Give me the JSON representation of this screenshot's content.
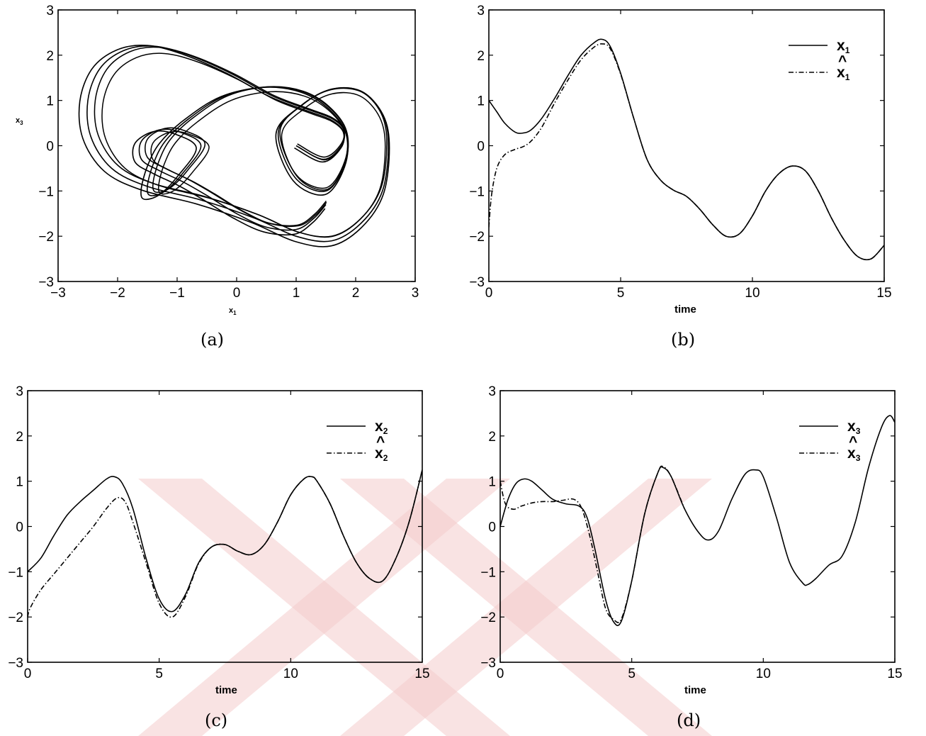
{
  "figure": {
    "colors": {
      "line": "#000000",
      "watermark": "#f4cccc",
      "background": "#ffffff"
    },
    "watermark_icon": "double-x-watermark"
  },
  "chart_data": [
    {
      "id": "a",
      "type": "line",
      "caption": "(a)",
      "xlabel": "x",
      "xlabel_sub": "1",
      "ylabel": "x",
      "ylabel_sub": "3",
      "xlim": [
        -3,
        3
      ],
      "ylim": [
        -3,
        3
      ],
      "xticks": [
        "−3",
        "−2",
        "−1",
        "0",
        "1",
        "2",
        "3"
      ],
      "yticks": [
        "3",
        "2",
        "1",
        "0",
        "−1",
        "−2",
        "−3"
      ],
      "grid": false,
      "legend": null,
      "series": [
        {
          "style": "solid",
          "kind": "phase_portrait",
          "x": [
            1.0,
            1.46,
            1.76,
            1.8,
            1.6,
            1.2,
            0.6,
            -0.1,
            -0.8,
            -1.4,
            -1.9,
            -2.3,
            -2.5,
            -2.45,
            -2.1,
            -1.5,
            -0.6,
            0.3,
            1.0,
            1.6,
            2.1,
            2.45,
            2.55,
            2.45,
            2.1,
            1.6,
            1.1,
            0.7,
            0.98,
            1.5,
            1.82,
            1.85,
            1.55,
            1.1,
            0.5,
            -0.2,
            -0.8,
            -1.2,
            -1.4,
            -1.5,
            -1.45,
            -1.2,
            -0.9,
            -0.6,
            -0.95,
            -1.3,
            -1.6,
            -1.6,
            -1.3,
            -0.9,
            -0.5,
            0.0,
            0.5,
            1.0,
            1.3,
            1.5
          ],
          "y": [
            0.0,
            -0.3,
            0.0,
            0.35,
            0.6,
            0.8,
            1.1,
            1.6,
            2.0,
            2.2,
            2.1,
            1.7,
            1.0,
            0.2,
            -0.5,
            -0.9,
            -1.2,
            -1.6,
            -2.0,
            -2.1,
            -1.7,
            -1.0,
            0.0,
            0.7,
            1.2,
            1.25,
            0.9,
            0.3,
            -0.7,
            -1.0,
            -0.4,
            0.3,
            0.85,
            1.2,
            1.3,
            1.1,
            0.6,
            0.1,
            -0.4,
            -0.9,
            -1.1,
            -1.0,
            -0.6,
            0.0,
            0.3,
            0.35,
            0.1,
            -0.3,
            -0.55,
            -0.8,
            -1.1,
            -1.5,
            -1.8,
            -1.85,
            -1.6,
            -1.3
          ]
        }
      ]
    },
    {
      "id": "b",
      "type": "line",
      "caption": "(b)",
      "xlabel": "time",
      "xlim": [
        0,
        15
      ],
      "ylim": [
        -3,
        3
      ],
      "xticks": [
        "0",
        "5",
        "10",
        "15"
      ],
      "yticks": [
        "3",
        "2",
        "1",
        "0",
        "−1",
        "−2",
        "−3"
      ],
      "grid": false,
      "legend": {
        "placement": "top-right",
        "entries": [
          {
            "label": "x",
            "sub": "1",
            "hat": false,
            "style": "solid"
          },
          {
            "label": "x",
            "sub": "1",
            "hat": true,
            "style": "dashdot"
          }
        ]
      },
      "series": [
        {
          "style": "solid",
          "x": [
            0,
            0.3,
            0.6,
            1.0,
            1.3,
            1.6,
            2.0,
            2.5,
            3.0,
            3.5,
            4.0,
            4.3,
            4.6,
            5.0,
            5.5,
            6.0,
            6.5,
            7.0,
            7.5,
            8.0,
            8.5,
            9.0,
            9.5,
            10.0,
            10.5,
            11.0,
            11.5,
            12.0,
            12.5,
            13.0,
            13.5,
            14.0,
            14.5,
            15.0
          ],
          "y": [
            1.0,
            0.75,
            0.5,
            0.3,
            0.28,
            0.35,
            0.6,
            1.05,
            1.55,
            2.0,
            2.28,
            2.35,
            2.2,
            1.6,
            0.6,
            -0.3,
            -0.75,
            -0.98,
            -1.12,
            -1.4,
            -1.75,
            -2.0,
            -1.95,
            -1.55,
            -1.0,
            -0.62,
            -0.45,
            -0.55,
            -1.0,
            -1.6,
            -2.1,
            -2.45,
            -2.5,
            -2.2
          ]
        },
        {
          "style": "dashdot",
          "x": [
            0,
            0.1,
            0.3,
            0.6,
            1.0,
            1.3,
            1.6,
            2.0,
            2.5,
            3.0,
            3.5,
            4.0,
            4.3,
            4.6,
            5.0,
            5.5,
            6.0,
            6.5,
            7.0,
            7.5,
            8.0,
            8.5,
            9.0,
            9.5,
            10.0,
            10.5,
            11.0,
            11.5,
            12.0,
            12.5,
            13.0,
            13.5,
            14.0,
            14.5,
            15.0
          ],
          "y": [
            -1.8,
            -1.1,
            -0.5,
            -0.2,
            -0.08,
            -0.02,
            0.1,
            0.4,
            0.95,
            1.45,
            1.9,
            2.18,
            2.25,
            2.15,
            1.58,
            0.6,
            -0.3,
            -0.75,
            -0.98,
            -1.12,
            -1.4,
            -1.75,
            -2.0,
            -1.95,
            -1.55,
            -1.0,
            -0.62,
            -0.45,
            -0.55,
            -1.0,
            -1.6,
            -2.1,
            -2.45,
            -2.5,
            -2.2
          ]
        }
      ]
    },
    {
      "id": "c",
      "type": "line",
      "caption": "(c)",
      "xlabel": "time",
      "xlim": [
        0,
        15
      ],
      "ylim": [
        -3,
        3
      ],
      "xticks": [
        "0",
        "5",
        "10",
        "15"
      ],
      "yticks": [
        "3",
        "2",
        "1",
        "0",
        "−1",
        "−2",
        "−3"
      ],
      "grid": false,
      "legend": {
        "placement": "top-right",
        "entries": [
          {
            "label": "x",
            "sub": "2",
            "hat": false,
            "style": "solid"
          },
          {
            "label": "x",
            "sub": "2",
            "hat": true,
            "style": "dashdot"
          }
        ]
      },
      "series": [
        {
          "style": "solid",
          "x": [
            0,
            0.5,
            1.0,
            1.5,
            2.0,
            2.5,
            3.0,
            3.3,
            3.6,
            4.0,
            4.5,
            5.0,
            5.5,
            6.0,
            6.5,
            7.0,
            7.5,
            8.0,
            8.5,
            9.0,
            9.5,
            10.0,
            10.5,
            10.8,
            11.0,
            11.5,
            12.0,
            12.5,
            13.0,
            13.5,
            14.0,
            14.5,
            15.0
          ],
          "y": [
            -1.0,
            -0.7,
            -0.2,
            0.25,
            0.55,
            0.8,
            1.05,
            1.1,
            0.95,
            0.4,
            -0.7,
            -1.6,
            -1.88,
            -1.5,
            -0.8,
            -0.45,
            -0.4,
            -0.55,
            -0.62,
            -0.4,
            0.1,
            0.7,
            1.05,
            1.1,
            1.0,
            0.5,
            -0.2,
            -0.8,
            -1.15,
            -1.2,
            -0.7,
            0.1,
            1.25
          ]
        },
        {
          "style": "dashdot",
          "x": [
            0,
            0.1,
            0.5,
            1.0,
            1.5,
            2.0,
            2.5,
            3.0,
            3.4,
            3.7,
            4.0,
            4.5,
            5.0,
            5.5,
            6.0,
            6.5,
            7.0,
            7.5,
            8.0,
            8.5,
            9.0,
            9.5,
            10.0,
            10.5,
            10.8,
            11.0,
            11.5,
            12.0,
            12.5,
            13.0,
            13.5,
            14.0,
            14.5,
            15.0
          ],
          "y": [
            -2.0,
            -1.8,
            -1.4,
            -1.05,
            -0.7,
            -0.35,
            0.0,
            0.4,
            0.63,
            0.55,
            0.1,
            -0.8,
            -1.7,
            -2.0,
            -1.55,
            -0.82,
            -0.45,
            -0.4,
            -0.55,
            -0.62,
            -0.4,
            0.1,
            0.7,
            1.05,
            1.1,
            1.0,
            0.5,
            -0.2,
            -0.8,
            -1.15,
            -1.2,
            -0.7,
            0.1,
            1.25
          ]
        }
      ]
    },
    {
      "id": "d",
      "type": "line",
      "caption": "(d)",
      "xlabel": "time",
      "xlim": [
        0,
        15
      ],
      "ylim": [
        -3,
        3
      ],
      "xticks": [
        "0",
        "5",
        "10",
        "15"
      ],
      "yticks": [
        "3",
        "2",
        "1",
        "0",
        "−1",
        "−2",
        "−3"
      ],
      "grid": false,
      "legend": {
        "placement": "top-right",
        "entries": [
          {
            "label": "x",
            "sub": "3",
            "hat": false,
            "style": "solid"
          },
          {
            "label": "x",
            "sub": "3",
            "hat": true,
            "style": "dashdot"
          }
        ]
      },
      "series": [
        {
          "style": "solid",
          "x": [
            0,
            0.3,
            0.6,
            0.9,
            1.2,
            1.6,
            2.0,
            2.5,
            3.0,
            3.3,
            3.6,
            4.0,
            4.3,
            4.6,
            5.0,
            5.5,
            6.0,
            6.2,
            6.5,
            7.0,
            7.5,
            7.9,
            8.3,
            8.8,
            9.3,
            9.7,
            10.0,
            10.5,
            11.0,
            11.5,
            11.7,
            12.0,
            12.5,
            13.0,
            13.5,
            14.0,
            14.5,
            14.8,
            15.0
          ],
          "y": [
            0.0,
            0.6,
            0.95,
            1.05,
            1.0,
            0.8,
            0.6,
            0.5,
            0.45,
            0.2,
            -0.5,
            -1.6,
            -2.1,
            -2.1,
            -1.2,
            0.3,
            1.2,
            1.3,
            1.1,
            0.4,
            -0.1,
            -0.3,
            -0.1,
            0.6,
            1.15,
            1.25,
            1.1,
            0.2,
            -0.8,
            -1.25,
            -1.28,
            -1.15,
            -0.85,
            -0.65,
            0.1,
            1.3,
            2.2,
            2.45,
            2.3
          ]
        },
        {
          "style": "dashdot",
          "x": [
            0,
            0.2,
            0.5,
            0.8,
            1.2,
            1.6,
            2.0,
            2.4,
            2.8,
            3.1,
            3.4,
            3.7,
            4.0,
            4.3,
            4.6,
            5.0,
            5.5,
            6.0,
            6.2,
            6.5,
            7.0
          ],
          "y": [
            1.0,
            0.5,
            0.38,
            0.45,
            0.52,
            0.55,
            0.55,
            0.58,
            0.6,
            0.4,
            -0.2,
            -1.0,
            -1.8,
            -2.05,
            -2.05,
            -1.2,
            0.3,
            1.2,
            1.32,
            1.1,
            0.4
          ]
        }
      ]
    }
  ]
}
